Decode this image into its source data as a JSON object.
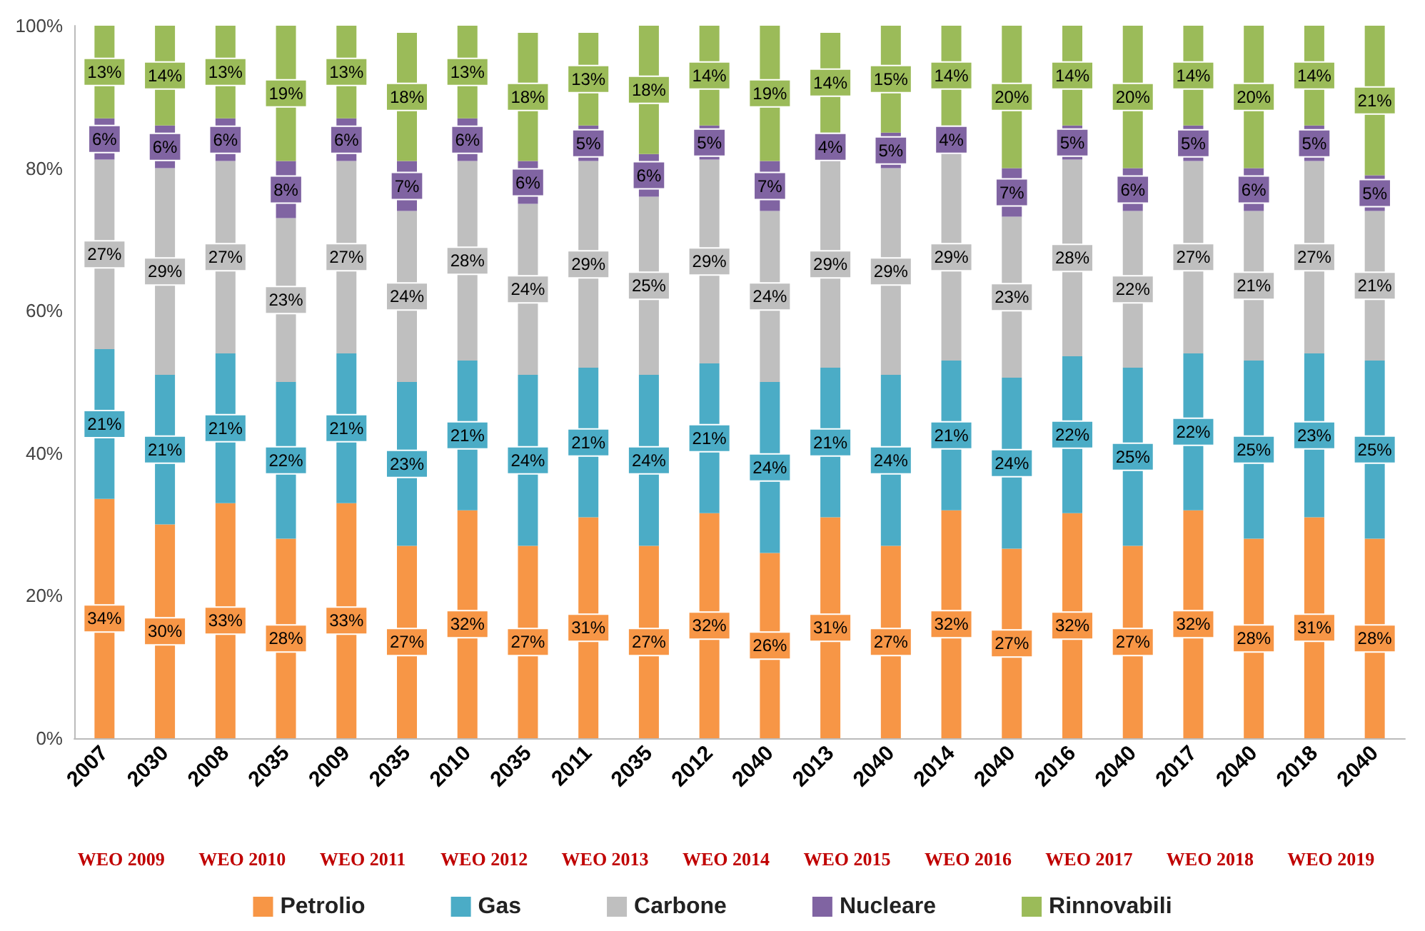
{
  "chart_data": {
    "type": "bar",
    "stacked": true,
    "categories": [
      "2007",
      "2030",
      "2008",
      "2035",
      "2009",
      "2035",
      "2010",
      "2035",
      "2011",
      "2035",
      "2012",
      "2040",
      "2013",
      "2040",
      "2014",
      "2040",
      "2016",
      "2040",
      "2017",
      "2040",
      "2018",
      "2040"
    ],
    "series": [
      {
        "name": "Petrolio",
        "color": "#f79646",
        "values": [
          33.6,
          30,
          33,
          28,
          33,
          27,
          32,
          27,
          31,
          27,
          31.6,
          26,
          31,
          27,
          32,
          26.6,
          31.6,
          27,
          32,
          28,
          31,
          28
        ],
        "value_labels": [
          "34%",
          "30%",
          "33%",
          "28%",
          "33%",
          "27%",
          "32%",
          "27%",
          "31%",
          "27%",
          "32%",
          "26%",
          "31%",
          "27%",
          "32%",
          "27%",
          "32%",
          "27%",
          "32%",
          "28%",
          "31%",
          "28%"
        ]
      },
      {
        "name": "Gas",
        "color": "#4bacc6",
        "values": [
          21,
          21,
          21,
          22,
          21,
          23,
          21,
          24,
          21,
          24,
          21,
          24,
          21,
          24,
          21,
          24,
          22,
          25,
          22,
          25,
          23,
          25
        ],
        "value_labels": [
          "21%",
          "21%",
          "21%",
          "22%",
          "21%",
          "23%",
          "21%",
          "24%",
          "21%",
          "24%",
          "21%",
          "24%",
          "21%",
          "24%",
          "21%",
          "24%",
          "22%",
          "25%",
          "22%",
          "25%",
          "23%",
          "25%"
        ]
      },
      {
        "name": "Carbone",
        "color": "#bfbfbf",
        "values": [
          26.6,
          29,
          27,
          23,
          27,
          24,
          28,
          24,
          29,
          25,
          28.6,
          24,
          29,
          29,
          29,
          22.6,
          27.6,
          22,
          27,
          21,
          27,
          21
        ],
        "value_labels": [
          "27%",
          "29%",
          "27%",
          "23%",
          "27%",
          "24%",
          "28%",
          "24%",
          "29%",
          "25%",
          "29%",
          "24%",
          "29%",
          "29%",
          "29%",
          "23%",
          "28%",
          "22%",
          "27%",
          "21%",
          "27%",
          "21%"
        ]
      },
      {
        "name": "Nucleare",
        "color": "#8064a2",
        "values": [
          5.8,
          6,
          6,
          8,
          6,
          7,
          6,
          6,
          5,
          6,
          4.8,
          7,
          4,
          5,
          4,
          6.8,
          4.8,
          6,
          5,
          6,
          5,
          5
        ],
        "value_labels": [
          "6%",
          "6%",
          "6%",
          "8%",
          "6%",
          "7%",
          "6%",
          "6%",
          "5%",
          "6%",
          "5%",
          "7%",
          "4%",
          "5%",
          "4%",
          "7%",
          "5%",
          "6%",
          "5%",
          "6%",
          "5%",
          "5%"
        ]
      },
      {
        "name": "Rinnovabili",
        "color": "#9bbb59",
        "values": [
          13,
          14,
          13,
          19,
          13,
          18,
          13,
          18,
          13,
          18,
          14,
          19,
          14,
          15,
          14,
          20,
          14,
          20,
          14,
          20,
          14,
          21
        ],
        "value_labels": [
          "13%",
          "14%",
          "13%",
          "19%",
          "13%",
          "18%",
          "13%",
          "18%",
          "13%",
          "18%",
          "14%",
          "19%",
          "14%",
          "15%",
          "14%",
          "20%",
          "14%",
          "20%",
          "14%",
          "20%",
          "14%",
          "21%"
        ]
      }
    ],
    "ylim": [
      0,
      100
    ],
    "yticks": [
      {
        "value": 0,
        "label": "0%"
      },
      {
        "value": 20,
        "label": "20%"
      },
      {
        "value": 40,
        "label": "40%"
      },
      {
        "value": 60,
        "label": "60%"
      },
      {
        "value": 80,
        "label": "80%"
      },
      {
        "value": 100,
        "label": "100%"
      }
    ],
    "grid": false,
    "legend": "bottom",
    "annotations": [
      "WEO 2009",
      "WEO 2010",
      "WEO 2011",
      "WEO 2012",
      "WEO 2013",
      "WEO 2014",
      "WEO 2015",
      "WEO 2016",
      "WEO 2017",
      "WEO 2018",
      "WEO 2019"
    ]
  }
}
